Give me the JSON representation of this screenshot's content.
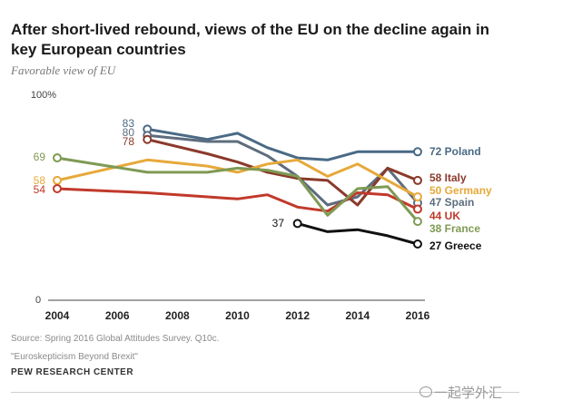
{
  "header": {
    "title": "After short-lived rebound, views of the EU on the decline again in key European countries",
    "subtitle": "Favorable view of EU"
  },
  "chart_data": {
    "type": "line",
    "title": "After short-lived rebound, views of the EU on the decline again in key European countries",
    "subtitle": "Favorable view of EU",
    "xlabel": "",
    "ylabel": "",
    "xlim": [
      2004,
      2016
    ],
    "ylim": [
      0,
      100
    ],
    "x_ticks": [
      "2004",
      "2006",
      "2008",
      "2010",
      "2012",
      "2014",
      "2016"
    ],
    "y_ticks": [
      "0",
      "100%"
    ],
    "series": [
      {
        "name": "Poland",
        "color": "#4a6a86",
        "x": [
          2007,
          2009,
          2010,
          2011,
          2012,
          2013,
          2014,
          2015,
          2016
        ],
        "values": [
          83,
          78,
          81,
          74,
          69,
          68,
          72,
          72,
          72
        ],
        "end_label": "72 Poland",
        "start_label": "83"
      },
      {
        "name": "Spain",
        "color": "#5d6d7e",
        "x": [
          2007,
          2009,
          2010,
          2011,
          2012,
          2013,
          2014,
          2015,
          2016
        ],
        "values": [
          80,
          77,
          77,
          70,
          60,
          46,
          50,
          64,
          47
        ],
        "end_label": "47 Spain",
        "start_label": "80"
      },
      {
        "name": "Italy",
        "color": "#8b3a2b",
        "x": [
          2007,
          2009,
          2010,
          2011,
          2012,
          2013,
          2014,
          2015,
          2016
        ],
        "values": [
          78,
          71,
          67,
          62,
          59,
          58,
          46,
          64,
          58
        ],
        "end_label": "58 Italy",
        "start_label": "78"
      },
      {
        "name": "Germany",
        "color": "#e6a93a",
        "x": [
          2004,
          2007,
          2009,
          2010,
          2011,
          2012,
          2013,
          2014,
          2015,
          2016
        ],
        "values": [
          58,
          68,
          65,
          62,
          66,
          68,
          60,
          66,
          58,
          50
        ],
        "end_label": "50 Germany",
        "start_label": "58"
      },
      {
        "name": "UK",
        "color": "#c1392b",
        "x": [
          2004,
          2007,
          2009,
          2010,
          2011,
          2012,
          2013,
          2014,
          2015,
          2016
        ],
        "values": [
          54,
          52,
          50,
          49,
          51,
          45,
          43,
          52,
          51,
          44
        ],
        "end_label": "44 UK",
        "start_label": "54"
      },
      {
        "name": "France",
        "color": "#7f9a54",
        "x": [
          2004,
          2007,
          2009,
          2010,
          2011,
          2012,
          2013,
          2014,
          2015,
          2016
        ],
        "values": [
          69,
          62,
          62,
          64,
          63,
          60,
          41,
          54,
          55,
          38
        ],
        "end_label": "38 France",
        "start_label": "69"
      },
      {
        "name": "Greece",
        "color": "#111111",
        "x": [
          2012,
          2013,
          2014,
          2015,
          2016
        ],
        "values": [
          37,
          33,
          34,
          31,
          27
        ],
        "end_label": "27 Greece",
        "start_label": "37"
      }
    ]
  },
  "footer": {
    "source": "Source: Spring 2016 Global Attitudes Survey. Q10c.",
    "report": "\"Euroskepticism Beyond Brexit\"",
    "org": "PEW RESEARCH CENTER",
    "watermark": "一起学外汇"
  }
}
